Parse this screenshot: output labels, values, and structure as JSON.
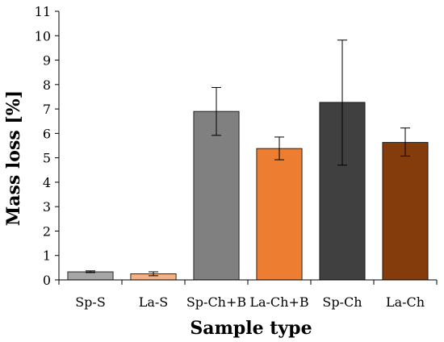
{
  "chart_data": {
    "type": "bar",
    "xlabel": "Sample type",
    "ylabel": "Mass loss [%]",
    "ylim": [
      0,
      11
    ],
    "yticks": [
      0,
      1,
      2,
      3,
      4,
      5,
      6,
      7,
      8,
      9,
      10,
      11
    ],
    "grid": false,
    "categories": [
      "Sp-S",
      "La-S",
      "Sp-Ch+B",
      "La-Ch+B",
      "Sp-Ch",
      "La-Ch"
    ],
    "values": [
      0.33,
      0.25,
      6.9,
      5.38,
      7.27,
      5.63
    ],
    "error_low": [
      0.3,
      0.17,
      5.92,
      4.92,
      4.7,
      5.07
    ],
    "error_high": [
      0.37,
      0.33,
      7.88,
      5.85,
      9.82,
      6.22
    ],
    "colors": [
      "#a6a6a6",
      "#f4b183",
      "#808080",
      "#ed7d31",
      "#404040",
      "#843c0c"
    ]
  }
}
